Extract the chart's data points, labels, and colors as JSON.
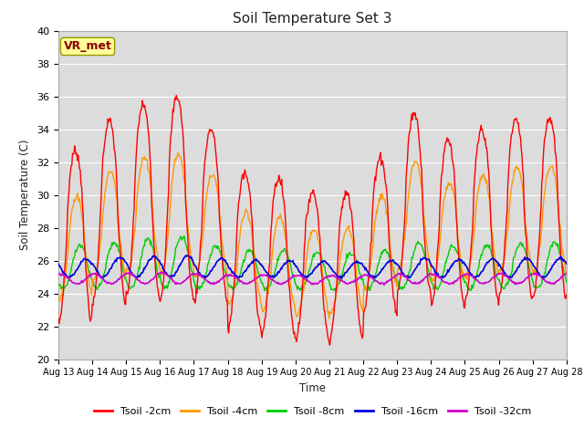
{
  "title": "Soil Temperature Set 3",
  "xlabel": "Time",
  "ylabel": "Soil Temperature (C)",
  "ylim": [
    20,
    40
  ],
  "yticks": [
    20,
    22,
    24,
    26,
    28,
    30,
    32,
    34,
    36,
    38,
    40
  ],
  "bg_color": "#dcdcdc",
  "fig_color": "#ffffff",
  "series_colors": {
    "Tsoil -2cm": "#ff0000",
    "Tsoil -4cm": "#ff9900",
    "Tsoil -8cm": "#00cc00",
    "Tsoil -16cm": "#0000dd",
    "Tsoil -32cm": "#cc00cc"
  },
  "xtick_labels": [
    "Aug 13",
    "Aug 14",
    "Aug 15",
    "Aug 16",
    "Aug 17",
    "Aug 18",
    "Aug 19",
    "Aug 20",
    "Aug 21",
    "Aug 22",
    "Aug 23",
    "Aug 24",
    "Aug 25",
    "Aug 26",
    "Aug 27",
    "Aug 28"
  ],
  "annotation_text": "VR_met",
  "annotation_color": "#8b0000",
  "annotation_bg": "#ffff99",
  "annotation_border": "#999900",
  "n_days": 15,
  "base_temp": 25.5,
  "amp2_base": 6.5,
  "amp4_base": 4.5,
  "amp8_base": 2.2,
  "amp16_base": 0.85,
  "amp32_base": 0.5
}
